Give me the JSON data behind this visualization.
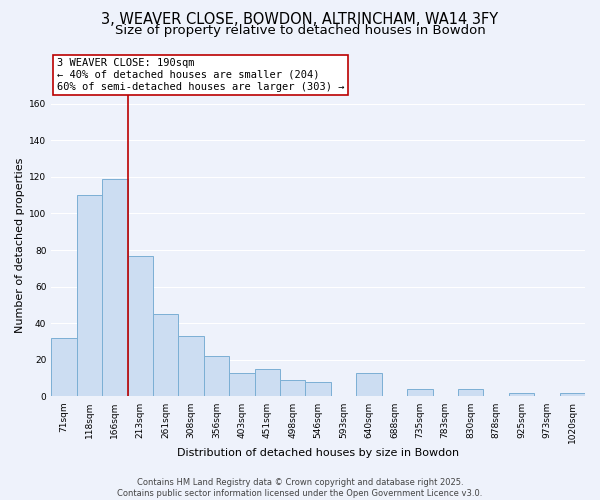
{
  "title": "3, WEAVER CLOSE, BOWDON, ALTRINCHAM, WA14 3FY",
  "subtitle": "Size of property relative to detached houses in Bowdon",
  "xlabel": "Distribution of detached houses by size in Bowdon",
  "ylabel": "Number of detached properties",
  "bar_labels": [
    "71sqm",
    "118sqm",
    "166sqm",
    "213sqm",
    "261sqm",
    "308sqm",
    "356sqm",
    "403sqm",
    "451sqm",
    "498sqm",
    "546sqm",
    "593sqm",
    "640sqm",
    "688sqm",
    "735sqm",
    "783sqm",
    "830sqm",
    "878sqm",
    "925sqm",
    "973sqm",
    "1020sqm"
  ],
  "bar_values": [
    32,
    110,
    119,
    77,
    45,
    33,
    22,
    13,
    15,
    9,
    8,
    0,
    13,
    0,
    4,
    0,
    4,
    0,
    2,
    0,
    2
  ],
  "bar_color": "#ccddf2",
  "bar_edge_color": "#7bafd4",
  "vline_x": 2.5,
  "vline_color": "#bb0000",
  "annotation_line1": "3 WEAVER CLOSE: 190sqm",
  "annotation_line2": "← 40% of detached houses are smaller (204)",
  "annotation_line3": "60% of semi-detached houses are larger (303) →",
  "ylim": [
    0,
    165
  ],
  "yticks": [
    0,
    20,
    40,
    60,
    80,
    100,
    120,
    140,
    160
  ],
  "bg_color": "#eef2fb",
  "grid_color": "#ffffff",
  "footer_text": "Contains HM Land Registry data © Crown copyright and database right 2025.\nContains public sector information licensed under the Open Government Licence v3.0.",
  "title_fontsize": 10.5,
  "subtitle_fontsize": 9.5,
  "label_fontsize": 8,
  "tick_fontsize": 6.5,
  "annotation_fontsize": 7.5,
  "footer_fontsize": 6
}
